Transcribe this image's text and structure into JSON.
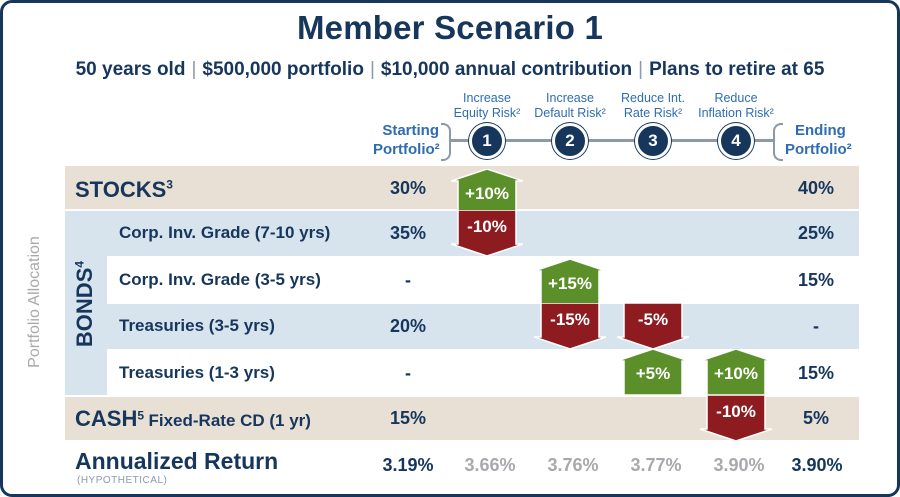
{
  "title": "Member Scenario 1",
  "subtitle": {
    "age": "50 years old",
    "portfolio": "$500,000 portfolio",
    "contribution": "$10,000 annual contribution",
    "retire": "Plans to retire at 65",
    "separator": "|"
  },
  "vertical_label": "Portfolio Allocation",
  "header": {
    "starting": [
      "Starting",
      "Portfolio²"
    ],
    "ending": [
      "Ending",
      "Portfolio²"
    ],
    "steps": [
      {
        "num": "1",
        "line1": "Increase",
        "line2": "Equity Risk²"
      },
      {
        "num": "2",
        "line1": "Increase",
        "line2": "Default Risk²"
      },
      {
        "num": "3",
        "line1": "Reduce Int.",
        "line2": "Rate Risk²"
      },
      {
        "num": "4",
        "line1": "Reduce",
        "line2": "Inflation Risk²"
      }
    ]
  },
  "rows": {
    "stocks": {
      "label": "STOCKS",
      "sup": "3",
      "start": "30%",
      "end": "40%"
    },
    "bonds_label": "BONDS",
    "bonds_sup": "4",
    "corp_7_10": {
      "label": "Corp. Inv. Grade (7-10 yrs)",
      "start": "35%",
      "end": "25%"
    },
    "corp_3_5": {
      "label": "Corp. Inv. Grade (3-5 yrs)",
      "start": "-",
      "end": "15%"
    },
    "treas_3_5": {
      "label": "Treasuries (3-5 yrs)",
      "start": "20%",
      "end": "-"
    },
    "treas_1_3": {
      "label": "Treasuries (1-3 yrs)",
      "start": "-",
      "end": "15%"
    },
    "cash": {
      "label": "CASH",
      "sup": "5",
      "sub_label": "Fixed-Rate CD (1 yr)",
      "start": "15%",
      "end": "5%"
    }
  },
  "arrows": [
    {
      "text": "+10%",
      "direction": "up",
      "color": "#5b8f2a"
    },
    {
      "text": "-10%",
      "direction": "down",
      "color": "#8e1b1f"
    },
    {
      "text": "+15%",
      "direction": "up",
      "color": "#5b8f2a"
    },
    {
      "text": "-15%",
      "direction": "down",
      "color": "#8e1b1f"
    },
    {
      "text": "-5%",
      "direction": "down",
      "color": "#8e1b1f"
    },
    {
      "text": "+5%",
      "direction": "up",
      "color": "#5b8f2a"
    },
    {
      "text": "+10%",
      "direction": "up",
      "color": "#5b8f2a"
    },
    {
      "text": "-10%",
      "direction": "down",
      "color": "#8e1b1f"
    }
  ],
  "returns": {
    "label": "Annualized Return",
    "note": "(HYPOTHETICAL)",
    "values": [
      "3.19%",
      "3.66%",
      "3.76%",
      "3.77%",
      "3.90%",
      "3.90%"
    ]
  },
  "colors": {
    "navy": "#16365c",
    "accent_blue": "#2f6cb0",
    "up_green": "#5b8f2a",
    "down_red": "#8e1b1f",
    "grey_text": "#a7a9ac"
  }
}
